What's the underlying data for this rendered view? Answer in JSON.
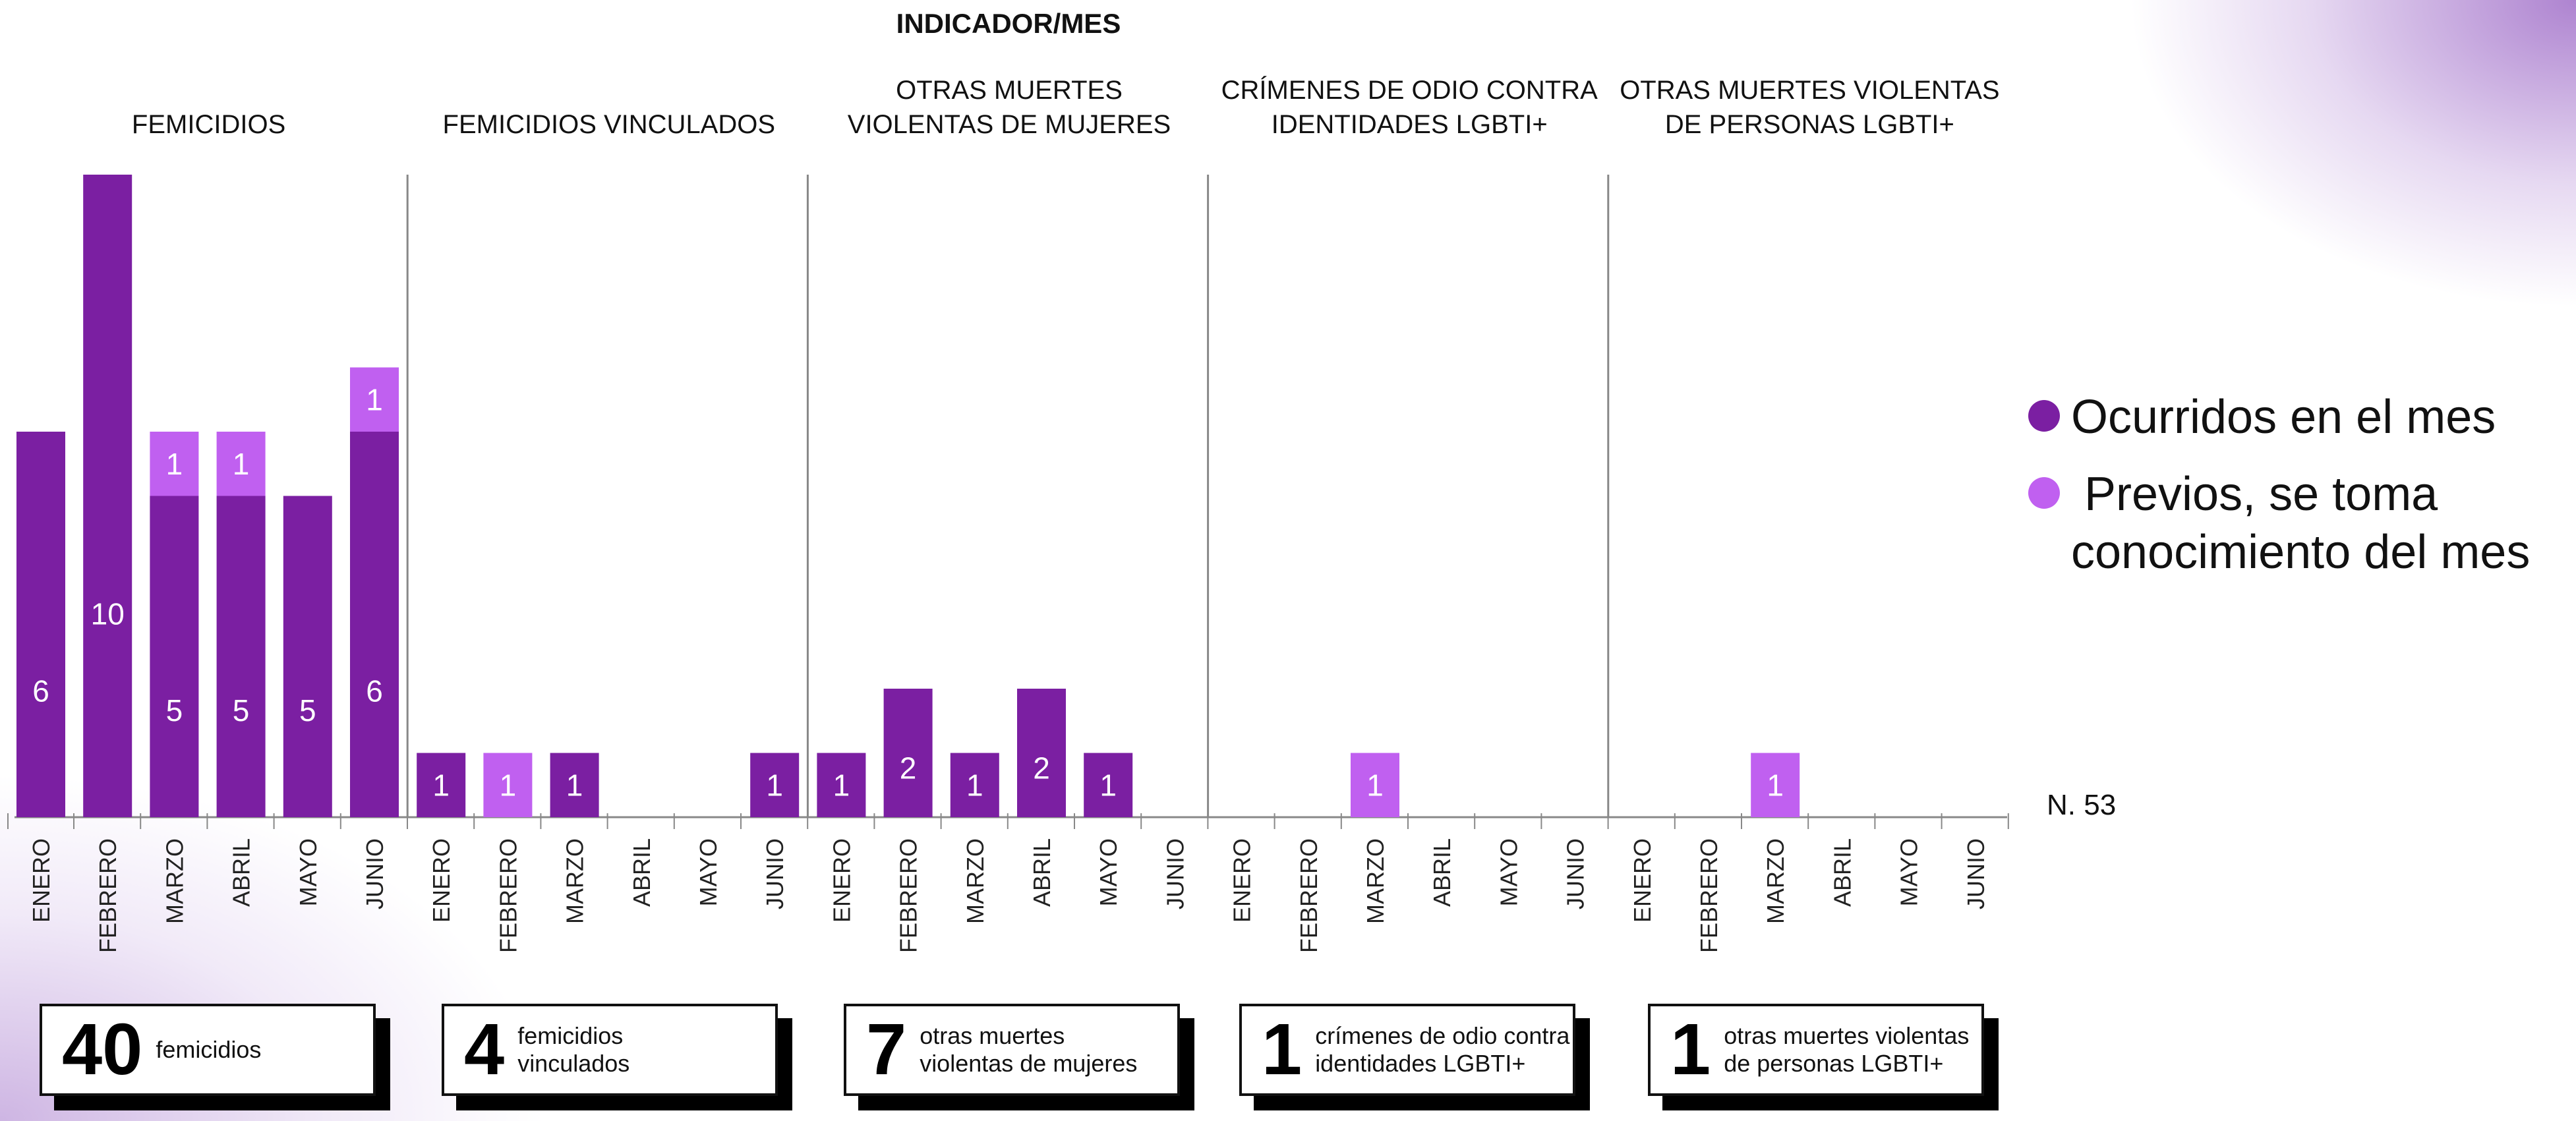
{
  "title": "INDICADOR/MES",
  "note": "N. 53",
  "legend": {
    "items": [
      {
        "label_lines": [
          "Ocurridos en el mes"
        ],
        "color": "#7B1FA2"
      },
      {
        "label_lines": [
          " Previos, se toma",
          "conocimiento del mes"
        ],
        "color": "#C060F0"
      }
    ]
  },
  "colors": {
    "ocurridos": "#7B1FA2",
    "previos": "#C060F0",
    "axis": "#888888"
  },
  "chart_data": {
    "type": "bar",
    "stacked": true,
    "title": "INDICADOR/MES",
    "months": [
      "ENERO",
      "FEBRERO",
      "MARZO",
      "ABRIL",
      "MAYO",
      "JUNIO"
    ],
    "series_names": [
      "Ocurridos en el mes",
      "Previos, se toma conocimiento del mes"
    ],
    "panels": [
      {
        "title_lines": [
          "FEMICIDIOS"
        ],
        "series": [
          {
            "name": "Ocurridos en el mes",
            "values": [
              6,
              10,
              5,
              5,
              5,
              6
            ]
          },
          {
            "name": "Previos, se toma conocimiento del mes",
            "values": [
              0,
              0,
              1,
              1,
              0,
              1
            ]
          }
        ]
      },
      {
        "title_lines": [
          "FEMICIDIOS VINCULADOS"
        ],
        "series": [
          {
            "name": "Ocurridos en el mes",
            "values": [
              1,
              0,
              1,
              0,
              0,
              1
            ]
          },
          {
            "name": "Previos, se toma conocimiento del mes",
            "values": [
              0,
              1,
              0,
              0,
              0,
              0
            ]
          }
        ]
      },
      {
        "title_lines": [
          "OTRAS MUERTES",
          "VIOLENTAS DE MUJERES"
        ],
        "series": [
          {
            "name": "Ocurridos en el mes",
            "values": [
              1,
              2,
              1,
              2,
              1,
              0
            ]
          },
          {
            "name": "Previos, se toma conocimiento del mes",
            "values": [
              0,
              0,
              0,
              0,
              0,
              0
            ]
          }
        ]
      },
      {
        "title_lines": [
          "CRÍMENES DE ODIO CONTRA",
          "IDENTIDADES LGBTI+"
        ],
        "series": [
          {
            "name": "Ocurridos en el mes",
            "values": [
              0,
              0,
              0,
              0,
              0,
              0
            ]
          },
          {
            "name": "Previos, se toma conocimiento del mes",
            "values": [
              0,
              0,
              1,
              0,
              0,
              0
            ]
          }
        ]
      },
      {
        "title_lines": [
          "OTRAS MUERTES VIOLENTAS",
          "DE PERSONAS LGBTI+"
        ],
        "series": [
          {
            "name": "Ocurridos en el mes",
            "values": [
              0,
              0,
              0,
              0,
              0,
              0
            ]
          },
          {
            "name": "Previos, se toma conocimiento del mes",
            "values": [
              0,
              0,
              1,
              0,
              0,
              0
            ]
          }
        ]
      }
    ],
    "ylim": [
      0,
      10
    ]
  },
  "totals": [
    {
      "value": "40",
      "text_lines": [
        "femicidios"
      ]
    },
    {
      "value": "4",
      "text_lines": [
        "femicidios",
        "vinculados"
      ]
    },
    {
      "value": "7",
      "text_lines": [
        "otras muertes",
        "violentas de mujeres"
      ]
    },
    {
      "value": "1",
      "text_lines": [
        "crímenes de odio contra",
        "identidades LGBTI+"
      ]
    },
    {
      "value": "1",
      "text_lines": [
        "otras muertes violentas",
        "de personas LGBTI+"
      ]
    }
  ]
}
